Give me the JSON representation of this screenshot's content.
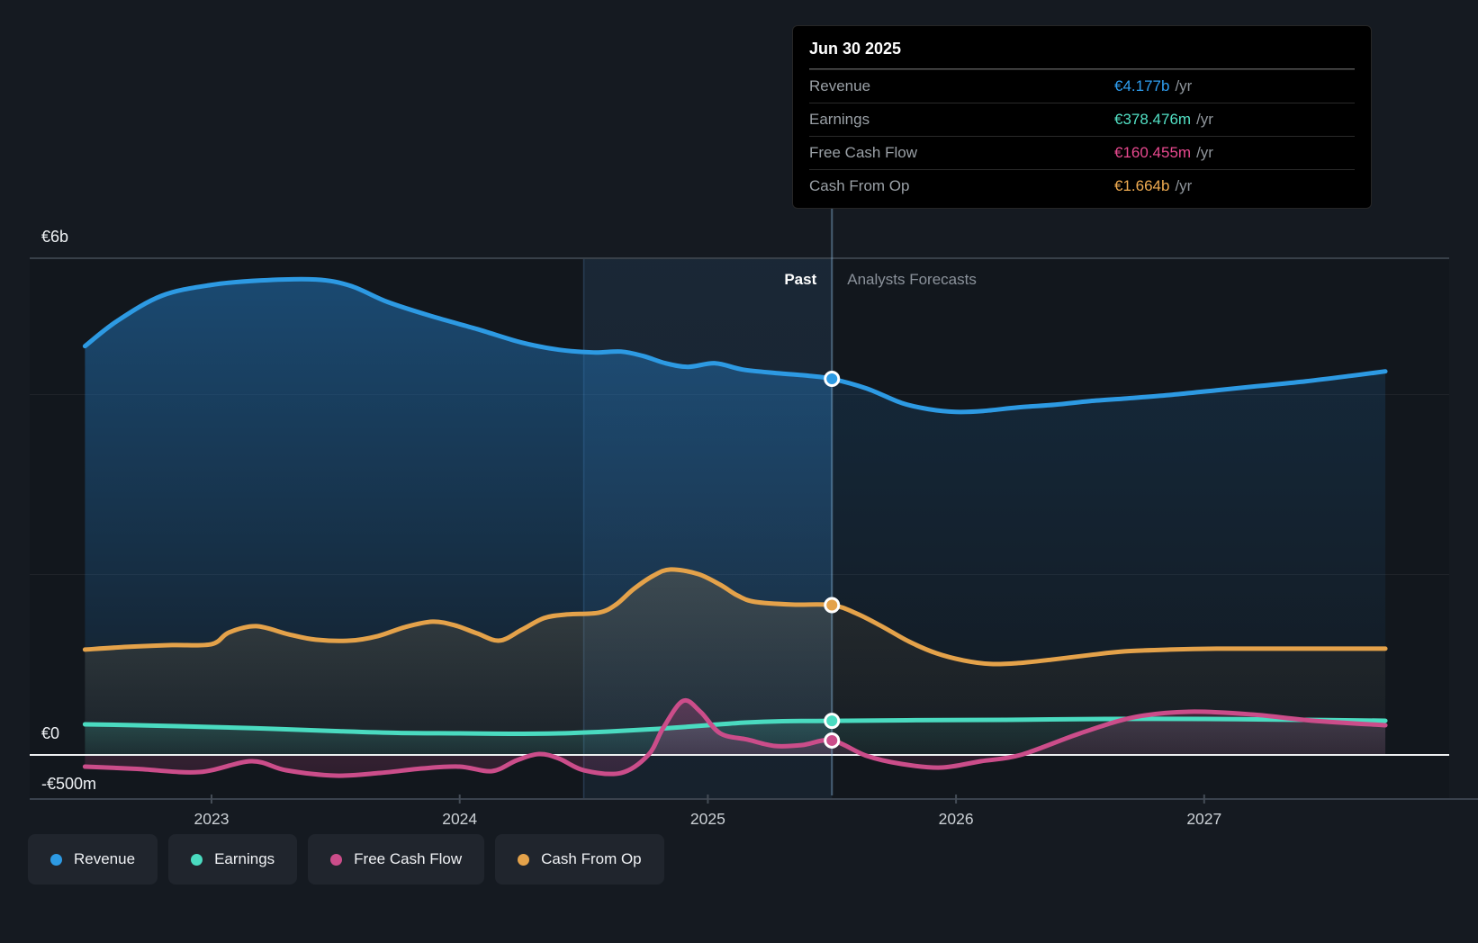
{
  "page": {
    "background": "#151a21"
  },
  "tooltip": {
    "date": "Jun 30 2025",
    "rows": [
      {
        "label": "Revenue",
        "value": "€4.177b",
        "unit": "/yr",
        "color": "#2f9ff2"
      },
      {
        "label": "Earnings",
        "value": "€378.476m",
        "unit": "/yr",
        "color": "#52e0c4"
      },
      {
        "label": "Free Cash Flow",
        "value": "€160.455m",
        "unit": "/yr",
        "color": "#e8498f"
      },
      {
        "label": "Cash From Op",
        "value": "€1.664b",
        "unit": "/yr",
        "color": "#efab51"
      }
    ]
  },
  "divider": {
    "past_label": "Past",
    "forecast_label": "Analysts Forecasts"
  },
  "y_axis": {
    "labels": [
      {
        "text": "€6b",
        "value": 6
      },
      {
        "text": "€0",
        "value": 0
      },
      {
        "text": "-€500m",
        "value": -0.5
      }
    ]
  },
  "x_axis": {
    "ticks": [
      "2023",
      "2024",
      "2025",
      "2026",
      "2027"
    ]
  },
  "legend": {
    "items": [
      {
        "label": "Revenue",
        "color": "#2d9ae3"
      },
      {
        "label": "Earnings",
        "color": "#4adbc0"
      },
      {
        "label": "Free Cash Flow",
        "color": "#cb4d8a"
      },
      {
        "label": "Cash From Op",
        "color": "#e4a24a"
      }
    ]
  },
  "chart_data": {
    "type": "line",
    "title": "Earnings and Revenue Growth Forecast",
    "unit": "EUR billions per year",
    "x_domain": [
      2022.49,
      2027.73
    ],
    "x_ticks": [
      2023,
      2024,
      2025,
      2026,
      2027
    ],
    "ylim": [
      -0.5,
      6
    ],
    "y_gridlines": [
      6,
      4,
      2,
      0,
      -0.5
    ],
    "past_forecast_boundary": 2025.5,
    "boundary_date": "Jun 30 2025",
    "highlight_band": [
      2024.5,
      2025.5
    ],
    "legend_position": "bottom",
    "series": [
      {
        "name": "Revenue",
        "color": "#2d9ae3",
        "marker_value_text": "€4.177b /yr",
        "value_at_boundary": 4.177,
        "points": [
          [
            2022.49,
            4.54
          ],
          [
            2022.62,
            4.82
          ],
          [
            2022.8,
            5.1
          ],
          [
            2023.0,
            5.22
          ],
          [
            2023.2,
            5.27
          ],
          [
            2023.42,
            5.28
          ],
          [
            2023.56,
            5.21
          ],
          [
            2023.71,
            5.03
          ],
          [
            2023.89,
            4.87
          ],
          [
            2024.07,
            4.73
          ],
          [
            2024.25,
            4.58
          ],
          [
            2024.4,
            4.5
          ],
          [
            2024.54,
            4.47
          ],
          [
            2024.65,
            4.48
          ],
          [
            2024.74,
            4.43
          ],
          [
            2024.83,
            4.35
          ],
          [
            2024.92,
            4.31
          ],
          [
            2025.03,
            4.35
          ],
          [
            2025.14,
            4.28
          ],
          [
            2025.28,
            4.24
          ],
          [
            2025.41,
            4.21
          ],
          [
            2025.5,
            4.177
          ],
          [
            2025.64,
            4.07
          ],
          [
            2025.78,
            3.91
          ],
          [
            2025.89,
            3.84
          ],
          [
            2026.0,
            3.81
          ],
          [
            2026.11,
            3.82
          ],
          [
            2026.25,
            3.86
          ],
          [
            2026.4,
            3.89
          ],
          [
            2026.54,
            3.93
          ],
          [
            2026.69,
            3.96
          ],
          [
            2026.87,
            4.0
          ],
          [
            2027.05,
            4.05
          ],
          [
            2027.23,
            4.1
          ],
          [
            2027.41,
            4.15
          ],
          [
            2027.59,
            4.21
          ],
          [
            2027.73,
            4.26
          ]
        ]
      },
      {
        "name": "Cash From Op",
        "color": "#e4a24a",
        "marker_value_text": "€1.664b /yr",
        "value_at_boundary": 1.664,
        "points": [
          [
            2022.49,
            1.17
          ],
          [
            2022.66,
            1.2
          ],
          [
            2022.84,
            1.22
          ],
          [
            2023.0,
            1.23
          ],
          [
            2023.07,
            1.36
          ],
          [
            2023.18,
            1.43
          ],
          [
            2023.31,
            1.34
          ],
          [
            2023.42,
            1.28
          ],
          [
            2023.56,
            1.27
          ],
          [
            2023.67,
            1.32
          ],
          [
            2023.78,
            1.42
          ],
          [
            2023.89,
            1.48
          ],
          [
            2023.98,
            1.44
          ],
          [
            2024.07,
            1.35
          ],
          [
            2024.16,
            1.27
          ],
          [
            2024.25,
            1.39
          ],
          [
            2024.34,
            1.52
          ],
          [
            2024.43,
            1.56
          ],
          [
            2024.56,
            1.58
          ],
          [
            2024.63,
            1.67
          ],
          [
            2024.7,
            1.84
          ],
          [
            2024.78,
            1.99
          ],
          [
            2024.85,
            2.06
          ],
          [
            2024.96,
            2.01
          ],
          [
            2025.05,
            1.89
          ],
          [
            2025.12,
            1.77
          ],
          [
            2025.19,
            1.7
          ],
          [
            2025.34,
            1.67
          ],
          [
            2025.5,
            1.664
          ],
          [
            2025.6,
            1.57
          ],
          [
            2025.7,
            1.43
          ],
          [
            2025.81,
            1.26
          ],
          [
            2025.92,
            1.13
          ],
          [
            2026.03,
            1.05
          ],
          [
            2026.14,
            1.01
          ],
          [
            2026.25,
            1.02
          ],
          [
            2026.39,
            1.06
          ],
          [
            2026.54,
            1.11
          ],
          [
            2026.68,
            1.15
          ],
          [
            2026.86,
            1.17
          ],
          [
            2027.05,
            1.18
          ],
          [
            2027.3,
            1.18
          ],
          [
            2027.73,
            1.18
          ]
        ]
      },
      {
        "name": "Earnings",
        "color": "#4adbc0",
        "marker_value_text": "€378.476m /yr",
        "value_at_boundary": 0.378476,
        "points": [
          [
            2022.49,
            0.34
          ],
          [
            2022.7,
            0.33
          ],
          [
            2023.0,
            0.31
          ],
          [
            2023.25,
            0.29
          ],
          [
            2023.5,
            0.265
          ],
          [
            2023.75,
            0.245
          ],
          [
            2024.0,
            0.24
          ],
          [
            2024.2,
            0.235
          ],
          [
            2024.4,
            0.24
          ],
          [
            2024.6,
            0.26
          ],
          [
            2024.8,
            0.29
          ],
          [
            2025.0,
            0.33
          ],
          [
            2025.15,
            0.36
          ],
          [
            2025.3,
            0.375
          ],
          [
            2025.5,
            0.378
          ],
          [
            2025.8,
            0.385
          ],
          [
            2026.2,
            0.39
          ],
          [
            2026.6,
            0.4
          ],
          [
            2027.0,
            0.4
          ],
          [
            2027.4,
            0.39
          ],
          [
            2027.73,
            0.38
          ]
        ]
      },
      {
        "name": "Free Cash Flow",
        "color": "#cb4d8a",
        "marker_value_text": "€160.455m /yr",
        "value_at_boundary": 0.160455,
        "points": [
          [
            2022.49,
            -0.13
          ],
          [
            2022.7,
            -0.155
          ],
          [
            2022.95,
            -0.19
          ],
          [
            2023.16,
            -0.07
          ],
          [
            2023.3,
            -0.17
          ],
          [
            2023.5,
            -0.23
          ],
          [
            2023.68,
            -0.2
          ],
          [
            2023.85,
            -0.15
          ],
          [
            2024.0,
            -0.13
          ],
          [
            2024.13,
            -0.18
          ],
          [
            2024.23,
            -0.06
          ],
          [
            2024.32,
            0.01
          ],
          [
            2024.4,
            -0.04
          ],
          [
            2024.5,
            -0.17
          ],
          [
            2024.65,
            -0.2
          ],
          [
            2024.76,
            0.0
          ],
          [
            2024.82,
            0.3
          ],
          [
            2024.9,
            0.6
          ],
          [
            2024.97,
            0.48
          ],
          [
            2025.05,
            0.24
          ],
          [
            2025.16,
            0.17
          ],
          [
            2025.27,
            0.1
          ],
          [
            2025.38,
            0.11
          ],
          [
            2025.5,
            0.160455
          ],
          [
            2025.64,
            -0.01
          ],
          [
            2025.78,
            -0.1
          ],
          [
            2025.94,
            -0.14
          ],
          [
            2026.1,
            -0.07
          ],
          [
            2026.26,
            0.0
          ],
          [
            2026.5,
            0.24
          ],
          [
            2026.72,
            0.42
          ],
          [
            2026.94,
            0.48
          ],
          [
            2027.19,
            0.45
          ],
          [
            2027.44,
            0.38
          ],
          [
            2027.73,
            0.33
          ]
        ]
      }
    ]
  }
}
